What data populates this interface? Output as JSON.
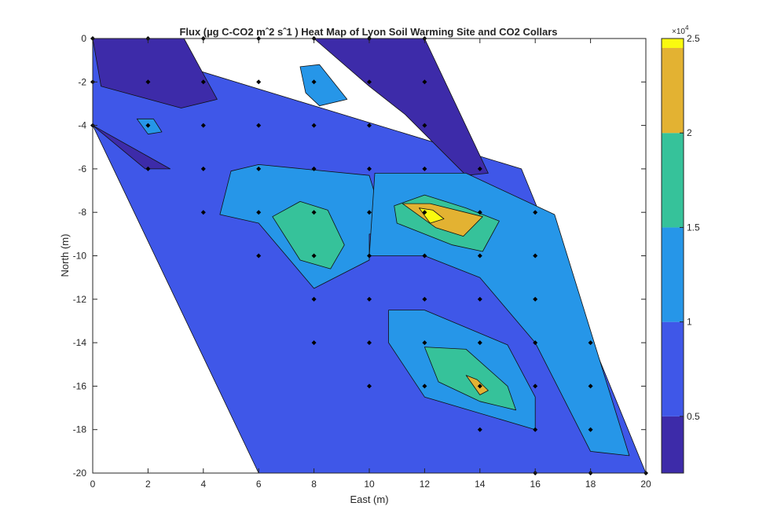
{
  "chart_data": {
    "type": "heatmap",
    "subtype": "filled-contour",
    "title": "Flux (µg C-CO2 mˆ2 sˆ1 ) Heat Map of Lyon Soil Warming Site and CO2 Collars",
    "xlabel": "East (m)",
    "ylabel": "North (m)",
    "xlim": [
      0,
      20
    ],
    "ylim": [
      -20,
      0
    ],
    "xticks": [
      0,
      2,
      4,
      6,
      8,
      10,
      12,
      14,
      16,
      18,
      20
    ],
    "yticks": [
      0,
      -2,
      -4,
      -6,
      -8,
      -10,
      -12,
      -14,
      -16,
      -18,
      -20
    ],
    "colormap": "parula",
    "colorbar": {
      "range": [
        2000,
        25000
      ],
      "ticks": [
        0.5,
        1,
        1.5,
        2,
        2.5
      ],
      "multiplier_label": "×10",
      "multiplier_exp": "4",
      "level_colors": [
        "#3d2ba9",
        "#3f57e8",
        "#2696e8",
        "#36c29a",
        "#e3b232",
        "#fafa0f"
      ]
    },
    "regions": [
      {
        "level": 1,
        "polygon": [
          [
            0,
            -4
          ],
          [
            0,
            0
          ],
          [
            15.5,
            -6
          ],
          [
            20,
            -20
          ],
          [
            6,
            -20
          ],
          [
            0,
            -4
          ]
        ]
      },
      {
        "level": 0,
        "polygon": [
          [
            0,
            0
          ],
          [
            3.3,
            0
          ],
          [
            4.5,
            -2.8
          ],
          [
            3.2,
            -3.2
          ],
          [
            0.3,
            -2.2
          ],
          [
            0,
            0
          ]
        ]
      },
      {
        "level": 0,
        "polygon": [
          [
            8,
            0
          ],
          [
            12,
            0
          ],
          [
            14.3,
            -6.2
          ],
          [
            13.5,
            -6.3
          ],
          [
            11.3,
            -3.5
          ],
          [
            10,
            -2.2
          ],
          [
            8,
            0
          ]
        ]
      },
      {
        "level": 0,
        "polygon": [
          [
            0,
            -4
          ],
          [
            2.8,
            -6
          ],
          [
            1.9,
            -6
          ],
          [
            0,
            -4
          ]
        ]
      },
      {
        "level": 2,
        "polygon": [
          [
            7.5,
            -1.3
          ],
          [
            8.2,
            -1.2
          ],
          [
            9.2,
            -2.8
          ],
          [
            8.2,
            -3.1
          ],
          [
            7.7,
            -2.5
          ],
          [
            7.5,
            -1.3
          ]
        ]
      },
      {
        "level": 2,
        "polygon": [
          [
            1.6,
            -3.7
          ],
          [
            2.2,
            -3.7
          ],
          [
            2.5,
            -4.3
          ],
          [
            2,
            -4.4
          ],
          [
            1.6,
            -3.7
          ]
        ]
      },
      {
        "level": 2,
        "polygon": [
          [
            5,
            -6.1
          ],
          [
            6,
            -5.8
          ],
          [
            10,
            -6.3
          ],
          [
            10.5,
            -8.4
          ],
          [
            11,
            -9
          ],
          [
            10,
            -9
          ],
          [
            10,
            -10.2
          ],
          [
            8,
            -11.5
          ],
          [
            6,
            -8.5
          ],
          [
            4.6,
            -8.1
          ],
          [
            5,
            -6.1
          ]
        ]
      },
      {
        "level": 2,
        "polygon": [
          [
            10.2,
            -6.2
          ],
          [
            13.5,
            -6.2
          ],
          [
            16.7,
            -8.1
          ],
          [
            19.4,
            -19.2
          ],
          [
            18,
            -19
          ],
          [
            16,
            -14
          ],
          [
            14,
            -11
          ],
          [
            12,
            -10
          ],
          [
            10,
            -10
          ],
          [
            10.2,
            -6.2
          ]
        ]
      },
      {
        "level": 2,
        "polygon": [
          [
            10.7,
            -12.5
          ],
          [
            12,
            -12.5
          ],
          [
            15,
            -14.1
          ],
          [
            16,
            -16.5
          ],
          [
            16,
            -18
          ],
          [
            12,
            -16.5
          ],
          [
            10.7,
            -14
          ],
          [
            10.7,
            -12.5
          ]
        ]
      },
      {
        "level": 3,
        "polygon": [
          [
            6.5,
            -8.2
          ],
          [
            7.5,
            -7.5
          ],
          [
            8.5,
            -7.9
          ],
          [
            9.1,
            -9.5
          ],
          [
            8.6,
            -10.6
          ],
          [
            7.5,
            -10.2
          ],
          [
            6.5,
            -8.2
          ]
        ]
      },
      {
        "level": 3,
        "polygon": [
          [
            10.9,
            -7.7
          ],
          [
            12,
            -7.2
          ],
          [
            13.5,
            -7.8
          ],
          [
            14.7,
            -8.4
          ],
          [
            14.1,
            -9.8
          ],
          [
            13,
            -9.5
          ],
          [
            11,
            -8.5
          ],
          [
            10.9,
            -7.7
          ]
        ]
      },
      {
        "level": 3,
        "polygon": [
          [
            12,
            -14.2
          ],
          [
            13.5,
            -14.3
          ],
          [
            15,
            -16
          ],
          [
            15.3,
            -17.1
          ],
          [
            14,
            -16.7
          ],
          [
            12.5,
            -15.8
          ],
          [
            12,
            -14.2
          ]
        ]
      },
      {
        "level": 4,
        "polygon": [
          [
            11.2,
            -7.6
          ],
          [
            12.2,
            -7.6
          ],
          [
            14.1,
            -8.2
          ],
          [
            13.4,
            -9.1
          ],
          [
            12.4,
            -8.7
          ],
          [
            11.2,
            -7.6
          ]
        ]
      },
      {
        "level": 4,
        "polygon": [
          [
            13.5,
            -15.5
          ],
          [
            13.9,
            -15.7
          ],
          [
            14.3,
            -16.2
          ],
          [
            14,
            -16.4
          ],
          [
            13.5,
            -15.5
          ]
        ]
      },
      {
        "level": 5,
        "polygon": [
          [
            11.8,
            -7.8
          ],
          [
            12.3,
            -7.9
          ],
          [
            12.7,
            -8.3
          ],
          [
            12.2,
            -8.5
          ],
          [
            11.8,
            -7.8
          ]
        ]
      }
    ],
    "collars": [
      [
        0,
        0
      ],
      [
        2,
        0
      ],
      [
        4,
        0
      ],
      [
        6,
        0
      ],
      [
        8,
        0
      ],
      [
        10,
        0
      ],
      [
        12,
        0
      ],
      [
        0,
        -2
      ],
      [
        2,
        -2
      ],
      [
        4,
        -2
      ],
      [
        6,
        -2
      ],
      [
        8,
        -2
      ],
      [
        10,
        -2
      ],
      [
        12,
        -2
      ],
      [
        0,
        -4
      ],
      [
        2,
        -4
      ],
      [
        4,
        -4
      ],
      [
        6,
        -4
      ],
      [
        8,
        -4
      ],
      [
        10,
        -4
      ],
      [
        12,
        -4
      ],
      [
        2,
        -6
      ],
      [
        4,
        -6
      ],
      [
        6,
        -6
      ],
      [
        8,
        -6
      ],
      [
        10,
        -6
      ],
      [
        12,
        -6
      ],
      [
        14,
        -6
      ],
      [
        4,
        -8
      ],
      [
        6,
        -8
      ],
      [
        8,
        -8
      ],
      [
        10,
        -8
      ],
      [
        12,
        -8
      ],
      [
        14,
        -8
      ],
      [
        16,
        -8
      ],
      [
        6,
        -10
      ],
      [
        8,
        -10
      ],
      [
        10,
        -10
      ],
      [
        12,
        -10
      ],
      [
        14,
        -10
      ],
      [
        16,
        -10
      ],
      [
        8,
        -12
      ],
      [
        10,
        -12
      ],
      [
        12,
        -12
      ],
      [
        14,
        -12
      ],
      [
        16,
        -12
      ],
      [
        8,
        -14
      ],
      [
        10,
        -14
      ],
      [
        12,
        -14
      ],
      [
        14,
        -14
      ],
      [
        16,
        -14
      ],
      [
        18,
        -14
      ],
      [
        10,
        -16
      ],
      [
        12,
        -16
      ],
      [
        14,
        -16
      ],
      [
        16,
        -16
      ],
      [
        18,
        -16
      ],
      [
        14,
        -18
      ],
      [
        16,
        -18
      ],
      [
        18,
        -18
      ],
      [
        16,
        -20
      ],
      [
        18,
        -20
      ],
      [
        20,
        -20
      ]
    ]
  }
}
